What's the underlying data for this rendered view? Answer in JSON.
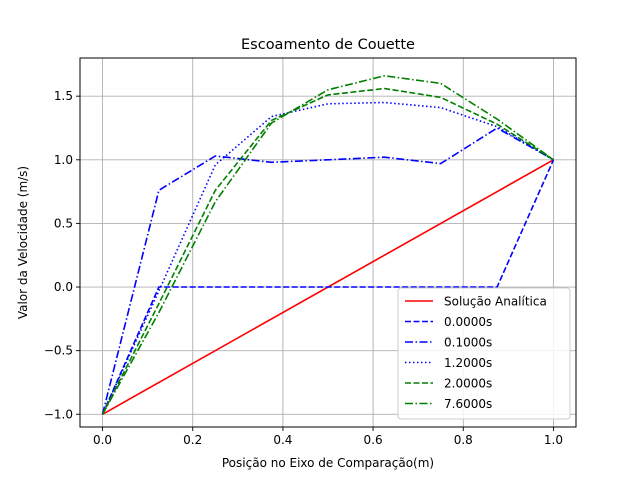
{
  "chart_data": {
    "type": "line",
    "title": "Escoamento de Couette",
    "xlabel": "Posição no Eixo de Comparação(m)",
    "ylabel": "Valor da Velocidade (m/s)",
    "xlim": [
      -0.05,
      1.05
    ],
    "ylim": [
      -1.1,
      1.8
    ],
    "xticks": [
      0.0,
      0.2,
      0.4,
      0.6,
      0.8,
      1.0
    ],
    "xtick_labels": [
      "0.0",
      "0.2",
      "0.4",
      "0.6",
      "0.8",
      "1.0"
    ],
    "yticks": [
      -1.0,
      -0.5,
      0.0,
      0.5,
      1.0,
      1.5
    ],
    "ytick_labels": [
      "−1.0",
      "−0.5",
      "0.0",
      "0.5",
      "1.0",
      "1.5"
    ],
    "grid": true,
    "legend_position": "lower-right",
    "series": [
      {
        "name": "Solução Analítica",
        "color": "#ff0000",
        "style": "solid",
        "x": [
          0.0,
          1.0
        ],
        "y": [
          -1.0,
          1.0
        ]
      },
      {
        "name": "0.0000s",
        "color": "#0000ff",
        "style": "dashed",
        "x": [
          0.0,
          0.125,
          0.25,
          0.375,
          0.5,
          0.625,
          0.75,
          0.875,
          1.0
        ],
        "y": [
          -1.0,
          0.0,
          0.0,
          0.0,
          0.0,
          0.0,
          0.0,
          0.0,
          1.0
        ]
      },
      {
        "name": "0.1000s",
        "color": "#0000ff",
        "style": "dashdot",
        "x": [
          0.0,
          0.125,
          0.25,
          0.375,
          0.5,
          0.625,
          0.75,
          0.875,
          1.0
        ],
        "y": [
          -1.0,
          0.76,
          1.03,
          0.98,
          1.0,
          1.02,
          0.97,
          1.25,
          1.0
        ]
      },
      {
        "name": "1.2000s",
        "color": "#0000ff",
        "style": "dotted",
        "x": [
          0.0,
          0.125,
          0.25,
          0.375,
          0.5,
          0.625,
          0.75,
          0.875,
          1.0
        ],
        "y": [
          -1.0,
          -0.03,
          0.96,
          1.34,
          1.44,
          1.45,
          1.41,
          1.26,
          1.0
        ]
      },
      {
        "name": "2.0000s",
        "color": "#008000",
        "style": "dashed",
        "x": [
          0.0,
          0.125,
          0.25,
          0.375,
          0.5,
          0.625,
          0.75,
          0.875,
          1.0
        ],
        "y": [
          -1.0,
          -0.13,
          0.76,
          1.31,
          1.51,
          1.56,
          1.49,
          1.28,
          1.0
        ]
      },
      {
        "name": "7.6000s",
        "color": "#008000",
        "style": "dashdot",
        "x": [
          0.0,
          0.125,
          0.25,
          0.375,
          0.5,
          0.625,
          0.75,
          0.875,
          1.0
        ],
        "y": [
          -1.0,
          -0.2,
          0.67,
          1.29,
          1.55,
          1.66,
          1.6,
          1.32,
          1.0
        ]
      }
    ]
  }
}
